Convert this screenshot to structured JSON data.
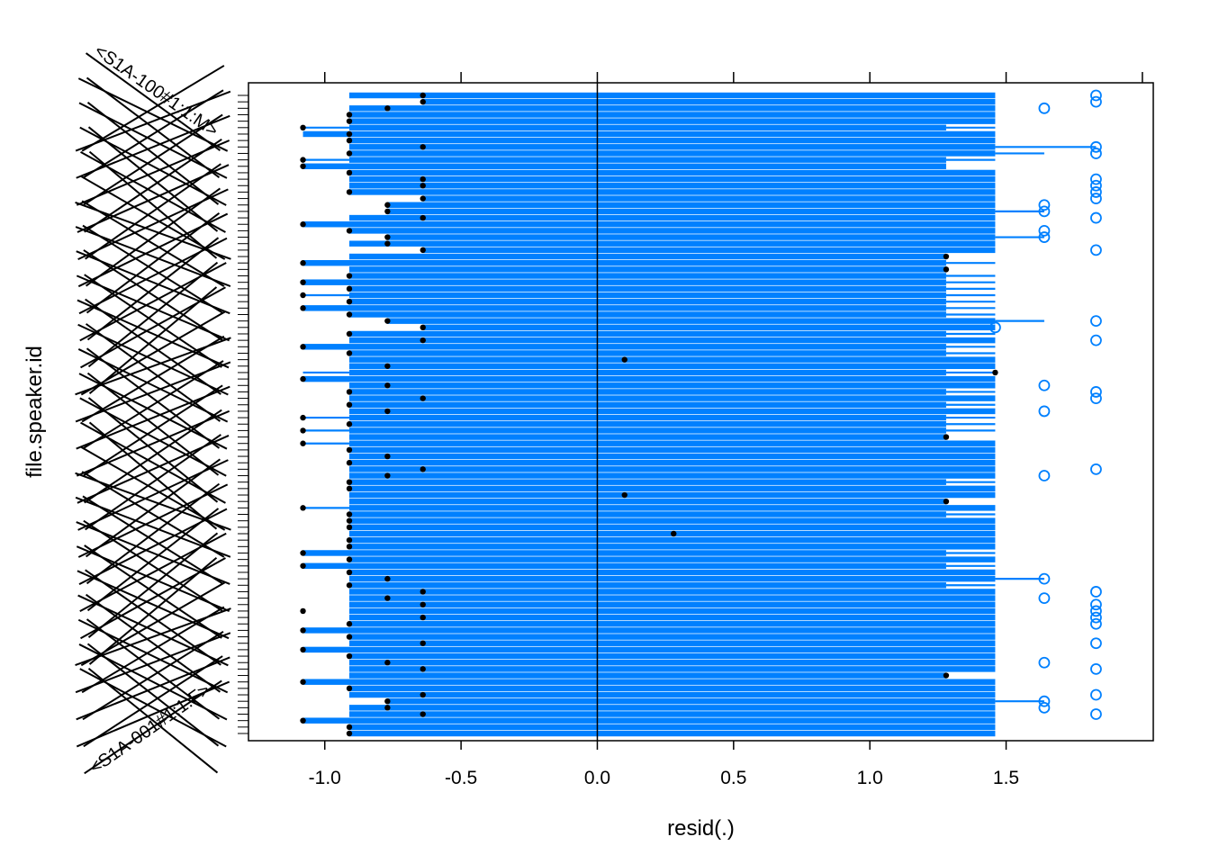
{
  "chart_data": {
    "type": "boxplot",
    "title": "",
    "xlabel": "resid(.)",
    "ylabel": "file.speaker.id",
    "xlim": [
      -1.28,
      2.04
    ],
    "x_ticks": [
      -1.0,
      -0.5,
      0.0,
      0.5,
      1.0,
      1.5
    ],
    "x_tick_labels": [
      "-1.0",
      "-0.5",
      "0.0",
      "0.5",
      "1.0",
      "1.5"
    ],
    "x_ticks_top": [
      -1.0,
      -0.5,
      0.0,
      0.5,
      1.0,
      1.5,
      2.0
    ],
    "reference_line_x": 0.0,
    "box_color": "#0080ff",
    "median_color": "#000000",
    "outlier_color": "#0080ff",
    "category_label_top": "<S1A-100#1:1:M>",
    "category_label_bottom": "<S1A-001#1:1:F>",
    "n_categories": 100,
    "box_levels": {
      "a": [
        -0.91,
        -0.91,
        0.0,
        1.46,
        1.46
      ],
      "b": [
        -0.91,
        -0.91,
        0.0,
        1.28,
        1.28
      ],
      "c": [
        -1.08,
        -1.08,
        0.0,
        1.46,
        1.46
      ],
      "d": [
        -1.08,
        -0.91,
        0.0,
        1.28,
        1.46
      ],
      "e": [
        -0.91,
        -0.91,
        0.0,
        1.46,
        1.64
      ],
      "f": [
        -0.77,
        -0.77,
        0.0,
        1.46,
        1.46
      ],
      "g": [
        -0.64,
        -0.64,
        0.0,
        1.46,
        1.46
      ],
      "h": [
        -0.77,
        -0.77,
        0.0,
        1.46,
        1.64
      ],
      "i": [
        -1.08,
        -1.08,
        0.0,
        1.28,
        1.28
      ],
      "j": [
        -1.08,
        -0.91,
        0.0,
        1.46,
        1.46
      ],
      "k": [
        -0.91,
        -0.91,
        0.0,
        1.28,
        1.46
      ],
      "l": [
        -1.08,
        -1.08,
        0.0,
        1.28,
        1.46
      ],
      "m": [
        -0.91,
        -0.91,
        0.0,
        1.46,
        1.83
      ]
    },
    "rows": [
      {
        "k": "a",
        "med": -0.64,
        "out": [
          1.83
        ]
      },
      {
        "k": "g",
        "med": -0.64,
        "out": [
          1.83
        ]
      },
      {
        "k": "a",
        "med": -0.77,
        "out": [
          1.64
        ]
      },
      {
        "k": "a",
        "med": -0.91,
        "out": []
      },
      {
        "k": "a",
        "med": -0.91,
        "out": []
      },
      {
        "k": "d",
        "med": -1.08,
        "out": []
      },
      {
        "k": "c",
        "med": -0.91,
        "out": []
      },
      {
        "k": "a",
        "med": -0.91,
        "out": []
      },
      {
        "k": "m",
        "med": -0.64,
        "out": [
          1.83
        ]
      },
      {
        "k": "e",
        "med": -0.91,
        "out": [
          1.83
        ]
      },
      {
        "k": "d",
        "med": -1.08,
        "out": []
      },
      {
        "k": "i",
        "med": -1.08,
        "out": []
      },
      {
        "k": "a",
        "med": -0.91,
        "out": []
      },
      {
        "k": "a",
        "med": -0.64,
        "out": [
          1.83
        ]
      },
      {
        "k": "a",
        "med": -0.64,
        "out": [
          1.83
        ]
      },
      {
        "k": "a",
        "med": -0.91,
        "out": [
          1.83
        ]
      },
      {
        "k": "g",
        "med": -0.64,
        "out": [
          1.83
        ]
      },
      {
        "k": "f",
        "med": -0.77,
        "out": [
          1.64
        ]
      },
      {
        "k": "h",
        "med": -0.77,
        "out": [
          1.64
        ]
      },
      {
        "k": "a",
        "med": -0.64,
        "out": [
          1.83
        ]
      },
      {
        "k": "c",
        "med": -1.08,
        "out": []
      },
      {
        "k": "a",
        "med": -0.91,
        "out": [
          1.64
        ]
      },
      {
        "k": "h",
        "med": -0.77,
        "out": [
          1.64
        ]
      },
      {
        "k": "a",
        "med": -0.77,
        "out": []
      },
      {
        "k": "g",
        "med": -0.64,
        "out": [
          1.83
        ]
      },
      {
        "k": "b",
        "med": 1.28,
        "out": []
      },
      {
        "k": "l",
        "med": -1.08,
        "out": []
      },
      {
        "k": "b",
        "med": 1.28,
        "out": []
      },
      {
        "k": "k",
        "med": -0.91,
        "out": []
      },
      {
        "k": "l",
        "med": -1.08,
        "out": []
      },
      {
        "k": "k",
        "med": -0.91,
        "out": []
      },
      {
        "k": "d",
        "med": -1.08,
        "out": []
      },
      {
        "k": "k",
        "med": -0.91,
        "out": []
      },
      {
        "k": "l",
        "med": -1.08,
        "out": []
      },
      {
        "k": "k",
        "med": -0.91,
        "out": []
      },
      {
        "k": "h",
        "med": -0.77,
        "out": [
          1.83
        ]
      },
      {
        "k": "g",
        "med": -0.64,
        "out": [
          1.46
        ]
      },
      {
        "k": "k",
        "med": -0.91,
        "out": []
      },
      {
        "k": "a",
        "med": -0.64,
        "out": [
          1.83
        ]
      },
      {
        "k": "l",
        "med": -1.08,
        "out": []
      },
      {
        "k": "k",
        "med": -0.91,
        "out": []
      },
      {
        "k": "a",
        "med": 0.1,
        "out": []
      },
      {
        "k": "a",
        "med": -0.77,
        "out": []
      },
      {
        "k": "d",
        "med": 1.46,
        "out": []
      },
      {
        "k": "c",
        "med": -1.08,
        "out": []
      },
      {
        "k": "a",
        "med": -0.77,
        "out": [
          1.64
        ]
      },
      {
        "k": "k",
        "med": -0.91,
        "out": [
          1.83
        ]
      },
      {
        "k": "a",
        "med": -0.64,
        "out": [
          1.83
        ]
      },
      {
        "k": "k",
        "med": -0.91,
        "out": []
      },
      {
        "k": "a",
        "med": -0.77,
        "out": [
          1.64
        ]
      },
      {
        "k": "d",
        "med": -1.08,
        "out": []
      },
      {
        "k": "k",
        "med": -0.91,
        "out": []
      },
      {
        "k": "d",
        "med": -1.08,
        "out": []
      },
      {
        "k": "b",
        "med": 1.28,
        "out": []
      },
      {
        "k": "j",
        "med": -1.08,
        "out": []
      },
      {
        "k": "a",
        "med": -0.91,
        "out": []
      },
      {
        "k": "a",
        "med": -0.77,
        "out": []
      },
      {
        "k": "a",
        "med": -0.91,
        "out": []
      },
      {
        "k": "a",
        "med": -0.64,
        "out": [
          1.83
        ]
      },
      {
        "k": "a",
        "med": -0.77,
        "out": [
          1.64
        ]
      },
      {
        "k": "k",
        "med": -0.91,
        "out": []
      },
      {
        "k": "a",
        "med": -0.91,
        "out": []
      },
      {
        "k": "a",
        "med": 0.1,
        "out": []
      },
      {
        "k": "b",
        "med": 1.28,
        "out": []
      },
      {
        "k": "j",
        "med": -1.08,
        "out": []
      },
      {
        "k": "k",
        "med": -0.91,
        "out": []
      },
      {
        "k": "a",
        "med": -0.91,
        "out": []
      },
      {
        "k": "a",
        "med": -0.91,
        "out": []
      },
      {
        "k": "a",
        "med": 0.28,
        "out": []
      },
      {
        "k": "a",
        "med": -0.91,
        "out": []
      },
      {
        "k": "a",
        "med": -0.91,
        "out": []
      },
      {
        "k": "l",
        "med": -1.08,
        "out": []
      },
      {
        "k": "a",
        "med": -0.91,
        "out": []
      },
      {
        "k": "l",
        "med": -1.08,
        "out": []
      },
      {
        "k": "a",
        "med": -0.91,
        "out": []
      },
      {
        "k": "e",
        "med": -0.77,
        "out": [
          1.64
        ]
      },
      {
        "k": "k",
        "med": -0.91,
        "out": []
      },
      {
        "k": "a",
        "med": -0.64,
        "out": [
          1.83
        ]
      },
      {
        "k": "a",
        "med": -0.77,
        "out": [
          1.64
        ]
      },
      {
        "k": "a",
        "med": -0.64,
        "out": [
          1.83
        ]
      },
      {
        "k": "a",
        "med": -1.08,
        "out": [
          1.83
        ]
      },
      {
        "k": "a",
        "med": -0.64,
        "out": [
          1.83
        ]
      },
      {
        "k": "a",
        "med": -0.91,
        "out": [
          1.83
        ]
      },
      {
        "k": "c",
        "med": -1.08,
        "out": []
      },
      {
        "k": "a",
        "med": -0.91,
        "out": []
      },
      {
        "k": "a",
        "med": -0.64,
        "out": [
          1.83
        ]
      },
      {
        "k": "c",
        "med": -1.08,
        "out": []
      },
      {
        "k": "a",
        "med": -0.91,
        "out": []
      },
      {
        "k": "a",
        "med": -0.77,
        "out": [
          1.64
        ]
      },
      {
        "k": "a",
        "med": -0.64,
        "out": [
          1.83
        ]
      },
      {
        "k": "b",
        "med": 1.28,
        "out": []
      },
      {
        "k": "c",
        "med": -1.08,
        "out": []
      },
      {
        "k": "a",
        "med": -0.91,
        "out": []
      },
      {
        "k": "a",
        "med": -0.64,
        "out": [
          1.83
        ]
      },
      {
        "k": "h",
        "med": -0.77,
        "out": [
          1.64
        ]
      },
      {
        "k": "a",
        "med": -0.77,
        "out": [
          1.64
        ]
      },
      {
        "k": "a",
        "med": -0.64,
        "out": [
          1.83
        ]
      },
      {
        "k": "c",
        "med": -1.08,
        "out": []
      },
      {
        "k": "a",
        "med": -0.91,
        "out": []
      },
      {
        "k": "a",
        "med": -0.91,
        "out": []
      }
    ]
  }
}
